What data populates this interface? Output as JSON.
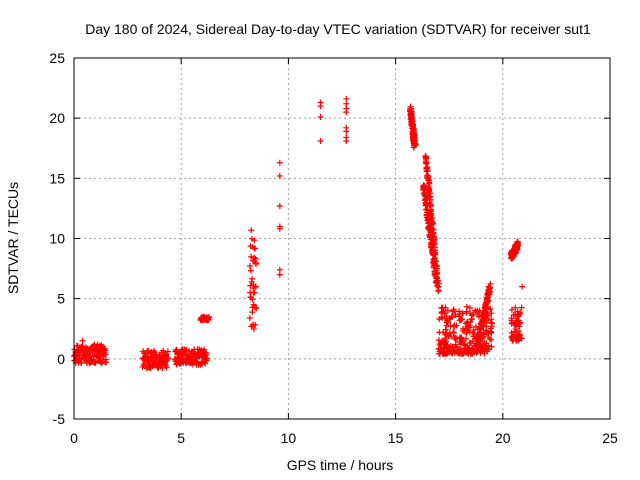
{
  "chart_data": {
    "type": "scatter",
    "title": "Day 180 of 2024, Sidereal Day-to-day VTEC variation (SDTVAR) for receiver sut1",
    "xlabel": "GPS time / hours",
    "ylabel": "SDTVAR / TECUs",
    "xlim": [
      0,
      25
    ],
    "ylim": [
      -5,
      25
    ],
    "xticks": [
      "0",
      "5",
      "10",
      "15",
      "20",
      "25"
    ],
    "yticks": [
      "-5",
      "0",
      "5",
      "10",
      "15",
      "20",
      "25"
    ],
    "grid": true,
    "marker": "+",
    "series": [
      {
        "name": "SDTVAR",
        "color": "#ff0000",
        "clusters": [
          {
            "x": [
              0.0,
              1.5
            ],
            "y": [
              -0.4,
              1.2
            ]
          },
          {
            "x": [
              3.2,
              4.4
            ],
            "y": [
              -0.8,
              0.7
            ]
          },
          {
            "x": [
              4.7,
              6.2
            ],
            "y": [
              -0.5,
              0.8
            ]
          },
          {
            "x": [
              5.9,
              6.3
            ],
            "y": [
              3.2,
              3.5
            ]
          },
          {
            "x": [
              8.2,
              8.5
            ],
            "y": [
              2.3,
              10.8
            ]
          }
        ],
        "points": [
          {
            "x": 0.4,
            "y": 1.5
          },
          {
            "x": 0.6,
            "y": -0.2
          },
          {
            "x": 9.6,
            "y": 16.3
          },
          {
            "x": 9.6,
            "y": 15.2
          },
          {
            "x": 9.6,
            "y": 12.7
          },
          {
            "x": 9.6,
            "y": 11.0
          },
          {
            "x": 9.6,
            "y": 10.8
          },
          {
            "x": 9.6,
            "y": 7.4
          },
          {
            "x": 9.6,
            "y": 7.0
          },
          {
            "x": 11.5,
            "y": 21.3
          },
          {
            "x": 11.5,
            "y": 21.0
          },
          {
            "x": 11.5,
            "y": 20.1
          },
          {
            "x": 11.5,
            "y": 18.1
          },
          {
            "x": 12.7,
            "y": 21.6
          },
          {
            "x": 12.7,
            "y": 21.2
          },
          {
            "x": 12.7,
            "y": 20.8
          },
          {
            "x": 12.7,
            "y": 20.5
          },
          {
            "x": 12.7,
            "y": 19.2
          },
          {
            "x": 12.7,
            "y": 18.9
          },
          {
            "x": 12.7,
            "y": 18.4
          },
          {
            "x": 12.7,
            "y": 18.1
          },
          {
            "x": 20.9,
            "y": 6.0
          }
        ],
        "trends": [
          {
            "x": [
              15.7,
              15.9
            ],
            "y": [
              20.7,
              17.6
            ]
          },
          {
            "x": [
              16.4,
              17.0
            ],
            "y": [
              17.0,
              5.8
            ]
          },
          {
            "x": [
              16.3,
              16.9
            ],
            "y": [
              14.5,
              6.5
            ]
          },
          {
            "x": [
              20.4,
              20.7
            ],
            "y": [
              8.5,
              9.5
            ]
          },
          {
            "x": [
              18.8,
              19.4
            ],
            "y": [
              1.0,
              6.0
            ]
          }
        ],
        "scatter_regions": [
          {
            "x": [
              17.0,
              19.5
            ],
            "y": [
              0.4,
              4.4
            ]
          },
          {
            "x": [
              20.4,
              20.9
            ],
            "y": [
              1.5,
              4.5
            ]
          }
        ]
      }
    ]
  }
}
